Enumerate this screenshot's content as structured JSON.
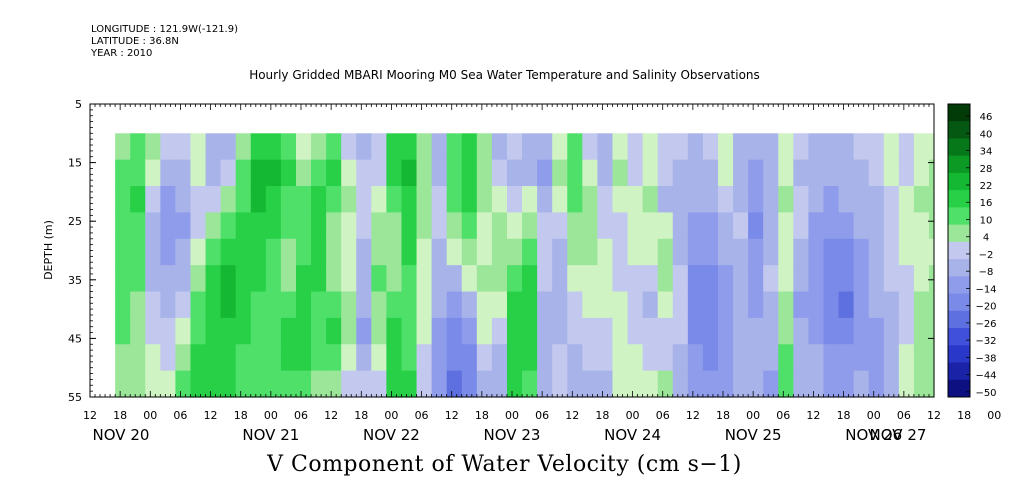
{
  "header": {
    "longitude": "LONGITUDE : 121.9W(-121.9)",
    "latitude": "LATITUDE : 36.8N",
    "year": "YEAR : 2010"
  },
  "chart_data": {
    "type": "heatmap",
    "title": "Hourly Gridded MBARI Mooring M0 Sea Water Temperature and Salinity Observations",
    "xlabel": "V Component of Water Velocity (cm s−1)",
    "ylabel": "DEPTH (m)",
    "y_ticks": [
      "5",
      "15",
      "25",
      "35",
      "45",
      "55"
    ],
    "y_range": [
      5,
      55
    ],
    "data_depth_range": [
      10,
      55
    ],
    "x_hour_ticks": [
      "12",
      "18",
      "00",
      "06",
      "12",
      "18",
      "00",
      "06",
      "12",
      "18",
      "00",
      "06",
      "12",
      "18",
      "00",
      "06",
      "12",
      "18",
      "00",
      "06",
      "12",
      "18",
      "00",
      "06",
      "12",
      "18",
      "00",
      "06",
      "12",
      "18",
      "00",
      "06",
      "12"
    ],
    "x_date_labels": [
      "NOV 20",
      "NOV 21",
      "NOV 22",
      "NOV 23",
      "NOV 24",
      "NOV 25",
      "NOV 26",
      "NOV 27"
    ],
    "x_range": [
      "2010-11-20 12:00",
      "2010-11-27 12:00"
    ],
    "data_start": "2010-11-20 17:00",
    "colorbar_levels": [
      "46",
      "40",
      "34",
      "28",
      "22",
      "16",
      "10",
      "4",
      "−2",
      "−8",
      "−14",
      "−20",
      "−26",
      "−32",
      "−38",
      "−44",
      "−50"
    ],
    "colorbar_range": [
      -50,
      50
    ],
    "palette": {
      "positive": [
        "#d0f3c4",
        "#9ce69a",
        "#4fe06a",
        "#28d048",
        "#15b832",
        "#0c9a24",
        "#06781a",
        "#045812",
        "#023a08"
      ],
      "negative": [
        "#c2c8ee",
        "#a8b3ea",
        "#8f9ceb",
        "#7a8ae8",
        "#5e6fe0",
        "#4050da",
        "#2a38c9",
        "#1a22a8",
        "#0c1080"
      ]
    },
    "columns": [
      {
        "time": "2010-11-20 17:00",
        "v": [
          9,
          12,
          14,
          15,
          16,
          15,
          14,
          13,
          11,
          10
        ]
      },
      {
        "time": "2010-11-20 20:00",
        "v": [
          12,
          15,
          18,
          17,
          15,
          13,
          11,
          9,
          8,
          7
        ]
      },
      {
        "time": "2010-11-20 23:00",
        "v": [
          6,
          3,
          -2,
          -6,
          -8,
          -7,
          -4,
          -1,
          2,
          4
        ]
      },
      {
        "time": "2010-11-21 02:00",
        "v": [
          -4,
          -8,
          -12,
          -14,
          -12,
          -9,
          -6,
          -3,
          -1,
          2
        ]
      },
      {
        "time": "2010-11-21 05:00",
        "v": [
          -2,
          -6,
          -10,
          -12,
          -10,
          -6,
          -2,
          3,
          8,
          12
        ]
      },
      {
        "time": "2010-11-21 08:00",
        "v": [
          4,
          2,
          -4,
          -2,
          4,
          10,
          14,
          16,
          18,
          18
        ]
      },
      {
        "time": "2010-11-21 11:00",
        "v": [
          -6,
          -8,
          -2,
          6,
          14,
          20,
          22,
          22,
          20,
          18
        ]
      },
      {
        "time": "2010-11-21 14:00",
        "v": [
          -8,
          -4,
          6,
          14,
          20,
          24,
          24,
          22,
          20,
          18
        ]
      },
      {
        "time": "2010-11-21 17:00",
        "v": [
          8,
          12,
          16,
          20,
          22,
          22,
          20,
          18,
          16,
          14
        ]
      },
      {
        "time": "2010-11-21 20:00",
        "v": [
          20,
          24,
          24,
          22,
          20,
          18,
          16,
          14,
          14,
          12
        ]
      },
      {
        "time": "2010-11-21 23:00",
        "v": [
          22,
          24,
          22,
          18,
          14,
          12,
          14,
          16,
          16,
          14
        ]
      },
      {
        "time": "2010-11-22 02:00",
        "v": [
          16,
          18,
          16,
          12,
          8,
          10,
          14,
          18,
          18,
          16
        ]
      },
      {
        "time": "2010-11-22 05:00",
        "v": [
          4,
          8,
          12,
          14,
          16,
          18,
          20,
          20,
          18,
          16
        ]
      },
      {
        "time": "2010-11-22 08:00",
        "v": [
          6,
          14,
          18,
          20,
          20,
          18,
          16,
          14,
          12,
          10
        ]
      },
      {
        "time": "2010-11-22 11:00",
        "v": [
          14,
          18,
          16,
          10,
          6,
          10,
          16,
          18,
          14,
          8
        ]
      },
      {
        "time": "2010-11-22 14:00",
        "v": [
          -4,
          2,
          8,
          4,
          0,
          4,
          8,
          6,
          2,
          -2
        ]
      },
      {
        "time": "2010-11-22 17:00",
        "v": [
          -6,
          -4,
          -2,
          -4,
          -6,
          -8,
          -10,
          -12,
          -8,
          -4
        ]
      },
      {
        "time": "2010-11-22 20:00",
        "v": [
          -4,
          -2,
          2,
          6,
          10,
          12,
          10,
          6,
          2,
          -4
        ]
      },
      {
        "time": "2010-11-22 23:00",
        "v": [
          20,
          18,
          14,
          10,
          8,
          10,
          14,
          18,
          20,
          22
        ]
      },
      {
        "time": "2010-11-23 02:00",
        "v": [
          22,
          24,
          22,
          20,
          18,
          16,
          14,
          14,
          16,
          18
        ]
      },
      {
        "time": "2010-11-23 05:00",
        "v": [
          8,
          10,
          10,
          8,
          4,
          2,
          2,
          0,
          -2,
          -4
        ]
      },
      {
        "time": "2010-11-23 08:00",
        "v": [
          -10,
          -8,
          -4,
          -2,
          -6,
          -8,
          -10,
          -12,
          -14,
          -16
        ]
      },
      {
        "time": "2010-11-23 11:00",
        "v": [
          12,
          14,
          16,
          10,
          2,
          -8,
          -14,
          -18,
          -22,
          -24
        ]
      },
      {
        "time": "2010-11-23 14:00",
        "v": [
          18,
          20,
          18,
          14,
          8,
          2,
          -6,
          -12,
          -18,
          -20
        ]
      },
      {
        "time": "2010-11-23 17:00",
        "v": [
          8,
          10,
          6,
          4,
          4,
          6,
          4,
          0,
          -4,
          -8
        ]
      },
      {
        "time": "2010-11-23 20:00",
        "v": [
          -6,
          -4,
          2,
          6,
          8,
          6,
          2,
          -2,
          -6,
          -8
        ]
      },
      {
        "time": "2010-11-23 23:00",
        "v": [
          -4,
          -6,
          -2,
          4,
          10,
          16,
          20,
          22,
          20,
          18
        ]
      },
      {
        "time": "2010-11-24 02:00",
        "v": [
          -8,
          -6,
          0,
          6,
          12,
          18,
          22,
          22,
          20,
          16
        ]
      },
      {
        "time": "2010-11-24 05:00",
        "v": [
          -10,
          -12,
          -8,
          -4,
          -2,
          -4,
          -6,
          -8,
          -10,
          -10
        ]
      },
      {
        "time": "2010-11-24 08:00",
        "v": [
          4,
          6,
          2,
          -4,
          -8,
          -10,
          -8,
          -6,
          -4,
          -2
        ]
      },
      {
        "time": "2010-11-24 11:00",
        "v": [
          14,
          16,
          14,
          10,
          6,
          2,
          -2,
          -4,
          -6,
          -6
        ]
      },
      {
        "time": "2010-11-24 14:00",
        "v": [
          -2,
          4,
          8,
          10,
          8,
          4,
          0,
          -2,
          -4,
          -6
        ]
      },
      {
        "time": "2010-11-24 17:00",
        "v": [
          -8,
          -6,
          -4,
          -2,
          2,
          4,
          2,
          -2,
          -4,
          -6
        ]
      },
      {
        "time": "2010-11-24 20:00",
        "v": [
          4,
          6,
          2,
          -2,
          -4,
          -2,
          2,
          4,
          4,
          2
        ]
      },
      {
        "time": "2010-11-24 23:00",
        "v": [
          -4,
          -2,
          2,
          4,
          2,
          -2,
          -4,
          -2,
          0,
          2
        ]
      },
      {
        "time": "2010-11-25 02:00",
        "v": [
          2,
          4,
          6,
          4,
          0,
          -4,
          -6,
          -4,
          -2,
          0
        ]
      },
      {
        "time": "2010-11-25 05:00",
        "v": [
          -2,
          -4,
          -6,
          2,
          8,
          6,
          0,
          -4,
          -2,
          6
        ]
      },
      {
        "time": "2010-11-25 08:00",
        "v": [
          -4,
          -6,
          -8,
          -10,
          -8,
          -4,
          -2,
          -4,
          -8,
          -10
        ]
      },
      {
        "time": "2010-11-25 11:00",
        "v": [
          -6,
          -8,
          -10,
          -12,
          -16,
          -18,
          -20,
          -18,
          -16,
          -14
        ]
      },
      {
        "time": "2010-11-25 14:00",
        "v": [
          -4,
          -6,
          -8,
          -12,
          -16,
          -20,
          -22,
          -20,
          -18,
          -14
        ]
      },
      {
        "time": "2010-11-25 17:00",
        "v": [
          2,
          0,
          -4,
          -6,
          -10,
          -14,
          -16,
          -16,
          -14,
          -12
        ]
      },
      {
        "time": "2010-11-25 20:00",
        "v": [
          -8,
          -10,
          -6,
          -4,
          -6,
          -8,
          -10,
          -10,
          -8,
          -6
        ]
      },
      {
        "time": "2010-11-25 23:00",
        "v": [
          -10,
          -14,
          -16,
          -18,
          -16,
          -14,
          -12,
          -10,
          -8,
          -6
        ]
      },
      {
        "time": "2010-11-26 02:00",
        "v": [
          -6,
          -8,
          -10,
          -8,
          -6,
          -4,
          -6,
          -8,
          -10,
          -12
        ]
      },
      {
        "time": "2010-11-26 05:00",
        "v": [
          2,
          4,
          6,
          4,
          2,
          4,
          8,
          10,
          12,
          12
        ]
      },
      {
        "time": "2010-11-26 08:00",
        "v": [
          -4,
          -6,
          -4,
          -2,
          -6,
          -10,
          -12,
          -10,
          -8,
          -6
        ]
      },
      {
        "time": "2010-11-26 11:00",
        "v": [
          -6,
          -8,
          -10,
          -12,
          -14,
          -16,
          -14,
          -12,
          -10,
          -8
        ]
      },
      {
        "time": "2010-11-26 14:00",
        "v": [
          -8,
          -10,
          -12,
          -16,
          -20,
          -22,
          -20,
          -18,
          -14,
          -12
        ]
      },
      {
        "time": "2010-11-26 17:00",
        "v": [
          -6,
          -8,
          -10,
          -14,
          -18,
          -22,
          -24,
          -20,
          -16,
          -12
        ]
      },
      {
        "time": "2010-11-26 20:00",
        "v": [
          -4,
          -6,
          -8,
          -10,
          -12,
          -14,
          -16,
          -14,
          -12,
          -10
        ]
      },
      {
        "time": "2010-11-26 23:00",
        "v": [
          -2,
          -4,
          -6,
          -8,
          -6,
          -8,
          -10,
          -14,
          -16,
          -14
        ]
      },
      {
        "time": "2010-11-27 02:00",
        "v": [
          2,
          0,
          -2,
          -4,
          -2,
          -4,
          -6,
          -8,
          -10,
          -8
        ]
      },
      {
        "time": "2010-11-27 05:00",
        "v": [
          -4,
          -2,
          2,
          4,
          2,
          -2,
          -4,
          -2,
          2,
          4
        ]
      },
      {
        "time": "2010-11-27 08:00",
        "v": [
          2,
          4,
          6,
          4,
          2,
          4,
          6,
          8,
          10,
          8
        ]
      },
      {
        "time": "2010-11-27 11:00",
        "v": [
          4,
          6,
          8,
          6,
          4,
          6,
          8,
          10,
          10,
          10
        ]
      }
    ]
  }
}
